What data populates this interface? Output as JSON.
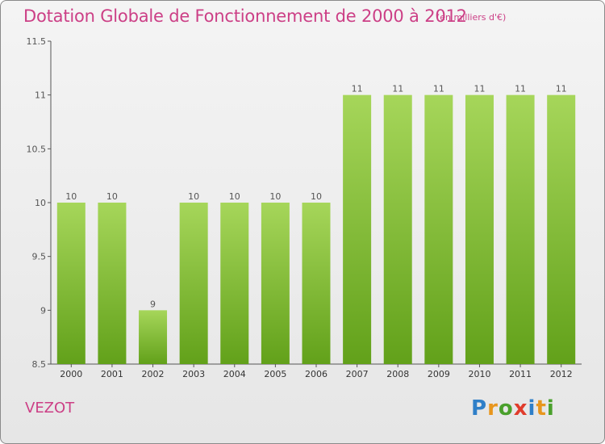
{
  "header": {
    "title": "Dotation Globale de Fonctionnement de 2000 à 2012",
    "subtitle": "(en milliers d'€)"
  },
  "footer": {
    "commune": "VEZOT",
    "logo_text": "Proxiti"
  },
  "colors": {
    "title": "#cc3f86",
    "bar_top": "#a6d65a",
    "bar_bottom": "#62a11a",
    "axis": "#555555",
    "grid": "#cccccc"
  },
  "chart_data": {
    "type": "bar",
    "title": "Dotation Globale de Fonctionnement de 2000 à 2012",
    "subtitle": "(en milliers d'€)",
    "categories": [
      "2000",
      "2001",
      "2002",
      "2003",
      "2004",
      "2005",
      "2006",
      "2007",
      "2008",
      "2009",
      "2010",
      "2011",
      "2012"
    ],
    "values": [
      10,
      10,
      9,
      10,
      10,
      10,
      10,
      11,
      11,
      11,
      11,
      11,
      11
    ],
    "data_labels": [
      "10",
      "10",
      "9",
      "10",
      "10",
      "10",
      "10",
      "11",
      "11",
      "11",
      "11",
      "11",
      "11"
    ],
    "ylim": [
      8.5,
      11.5
    ],
    "yticks": [
      8.5,
      9,
      9.5,
      10,
      10.5,
      11,
      11.5
    ],
    "ytick_labels": [
      "8.5",
      "9",
      "9.5",
      "10",
      "10.5",
      "11",
      "11.5"
    ],
    "xlabel": "",
    "ylabel": "",
    "grid": false,
    "legend": "none"
  }
}
